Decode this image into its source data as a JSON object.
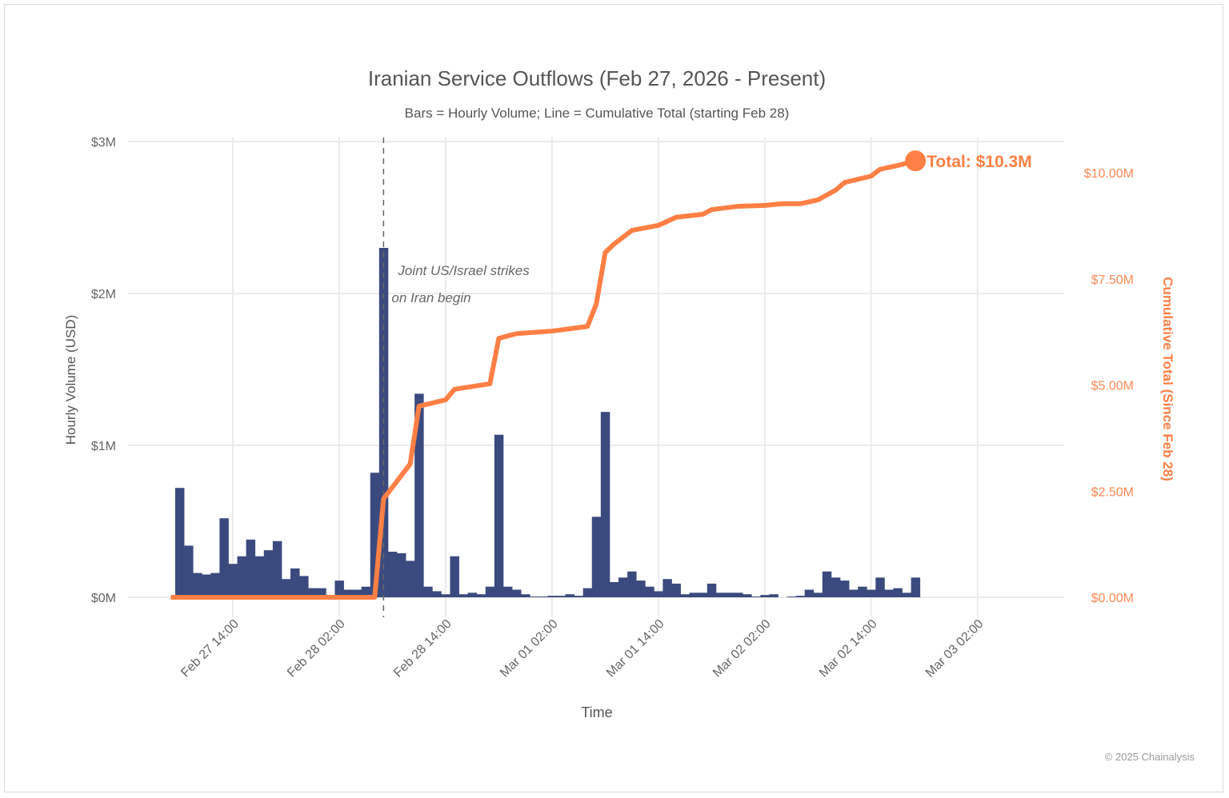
{
  "chart_data": {
    "type": "bar+line",
    "title": "Iranian Service Outflows (Feb 27, 2026 - Present)",
    "subtitle": "Bars = Hourly Volume; Line = Cumulative Total (starting Feb 28)",
    "xlabel": "Time",
    "ylabel": "Hourly Volume (USD)",
    "ylabel_right": "Cumulative Total (Since Feb 28)",
    "ylim": [
      0,
      3
    ],
    "ylim_right": [
      0,
      10.73
    ],
    "grid": true,
    "x_ticks": [
      {
        "t": "2026-02-27 14:00",
        "label": "Feb 27 14:00"
      },
      {
        "t": "2026-02-28 02:00",
        "label": "Feb 28 02:00"
      },
      {
        "t": "2026-02-28 14:00",
        "label": "Feb 28 14:00"
      },
      {
        "t": "2026-03-01 02:00",
        "label": "Mar 01 02:00"
      },
      {
        "t": "2026-03-01 14:00",
        "label": "Mar 01 14:00"
      },
      {
        "t": "2026-03-02 02:00",
        "label": "Mar 02 02:00"
      },
      {
        "t": "2026-03-02 14:00",
        "label": "Mar 02 14:00"
      },
      {
        "t": "2026-03-03 02:00",
        "label": "Mar 03 02:00"
      }
    ],
    "y_ticks": [
      {
        "v": 0,
        "label": "$0M"
      },
      {
        "v": 1,
        "label": "$1M"
      },
      {
        "v": 2,
        "label": "$2M"
      },
      {
        "v": 3,
        "label": "$3M"
      }
    ],
    "y_ticks_right": [
      {
        "v": 0,
        "label": "$0.00M"
      },
      {
        "v": 2.5,
        "label": "$2.50M"
      },
      {
        "v": 5,
        "label": "$5.00M"
      },
      {
        "v": 7.5,
        "label": "$7.50M"
      },
      {
        "v": 10,
        "label": "$10.00M"
      }
    ],
    "bars": {
      "unit": "USD millions",
      "color": "#3b4a7e",
      "x": [
        "2026-02-27 08:00",
        "2026-02-27 09:00",
        "2026-02-27 10:00",
        "2026-02-27 11:00",
        "2026-02-27 12:00",
        "2026-02-27 13:00",
        "2026-02-27 14:00",
        "2026-02-27 15:00",
        "2026-02-27 16:00",
        "2026-02-27 17:00",
        "2026-02-27 18:00",
        "2026-02-27 19:00",
        "2026-02-27 20:00",
        "2026-02-27 21:00",
        "2026-02-27 22:00",
        "2026-02-27 23:00",
        "2026-02-28 00:00",
        "2026-02-28 01:00",
        "2026-02-28 02:00",
        "2026-02-28 03:00",
        "2026-02-28 04:00",
        "2026-02-28 05:00",
        "2026-02-28 06:00",
        "2026-02-28 07:00",
        "2026-02-28 08:00",
        "2026-02-28 09:00",
        "2026-02-28 10:00",
        "2026-02-28 11:00",
        "2026-02-28 12:00",
        "2026-02-28 13:00",
        "2026-02-28 14:00",
        "2026-02-28 15:00",
        "2026-02-28 16:00",
        "2026-02-28 17:00",
        "2026-02-28 18:00",
        "2026-02-28 19:00",
        "2026-02-28 20:00",
        "2026-02-28 21:00",
        "2026-02-28 22:00",
        "2026-02-28 23:00",
        "2026-03-01 00:00",
        "2026-03-01 01:00",
        "2026-03-01 02:00",
        "2026-03-01 03:00",
        "2026-03-01 04:00",
        "2026-03-01 05:00",
        "2026-03-01 06:00",
        "2026-03-01 07:00",
        "2026-03-01 08:00",
        "2026-03-01 09:00",
        "2026-03-01 10:00",
        "2026-03-01 11:00",
        "2026-03-01 12:00",
        "2026-03-01 13:00",
        "2026-03-01 14:00",
        "2026-03-01 15:00",
        "2026-03-01 16:00",
        "2026-03-01 17:00",
        "2026-03-01 18:00",
        "2026-03-01 19:00",
        "2026-03-01 20:00",
        "2026-03-01 21:00",
        "2026-03-01 22:00",
        "2026-03-01 23:00",
        "2026-03-02 00:00",
        "2026-03-02 01:00",
        "2026-03-02 02:00",
        "2026-03-02 03:00",
        "2026-03-02 04:00",
        "2026-03-02 05:00",
        "2026-03-02 06:00",
        "2026-03-02 07:00",
        "2026-03-02 08:00",
        "2026-03-02 09:00",
        "2026-03-02 10:00",
        "2026-03-02 11:00",
        "2026-03-02 12:00",
        "2026-03-02 13:00",
        "2026-03-02 14:00",
        "2026-03-02 15:00",
        "2026-03-02 16:00",
        "2026-03-02 17:00",
        "2026-03-02 18:00",
        "2026-03-02 19:00"
      ],
      "values": [
        0.72,
        0.34,
        0.16,
        0.15,
        0.16,
        0.52,
        0.22,
        0.27,
        0.38,
        0.27,
        0.31,
        0.37,
        0.12,
        0.19,
        0.14,
        0.06,
        0.06,
        0.01,
        0.11,
        0.05,
        0.05,
        0.07,
        0.82,
        2.3,
        0.3,
        0.29,
        0.24,
        1.34,
        0.07,
        0.04,
        0.02,
        0.27,
        0.02,
        0.03,
        0.02,
        0.07,
        1.07,
        0.07,
        0.05,
        0.02,
        0.005,
        0.005,
        0.01,
        0.01,
        0.02,
        0.01,
        0.06,
        0.53,
        1.22,
        0.1,
        0.13,
        0.17,
        0.11,
        0.07,
        0.04,
        0.12,
        0.09,
        0.02,
        0.03,
        0.03,
        0.09,
        0.03,
        0.03,
        0.03,
        0.02,
        0.005,
        0.015,
        0.02,
        0,
        0.005,
        0.01,
        0.05,
        0.03,
        0.17,
        0.13,
        0.11,
        0.05,
        0.07,
        0.05,
        0.13,
        0.05,
        0.06,
        0.03,
        0.13
      ]
    },
    "line": {
      "unit": "USD millions",
      "color": "#ff7f45",
      "points": [
        [
          "2026-02-27 07:00",
          0
        ],
        [
          "2026-02-28 06:00",
          0
        ],
        [
          "2026-02-28 07:00",
          2.32
        ],
        [
          "2026-02-28 10:00",
          3.14
        ],
        [
          "2026-02-28 11:00",
          4.5
        ],
        [
          "2026-02-28 14:00",
          4.65
        ],
        [
          "2026-02-28 15:00",
          4.9
        ],
        [
          "2026-02-28 19:00",
          5.03
        ],
        [
          "2026-02-28 20:00",
          6.1
        ],
        [
          "2026-02-28 22:00",
          6.21
        ],
        [
          "2026-03-01 02:00",
          6.27
        ],
        [
          "2026-03-01 06:00",
          6.38
        ],
        [
          "2026-03-01 07:00",
          6.91
        ],
        [
          "2026-03-01 08:00",
          8.12
        ],
        [
          "2026-03-01 09:00",
          8.32
        ],
        [
          "2026-03-01 11:00",
          8.64
        ],
        [
          "2026-03-01 14:00",
          8.76
        ],
        [
          "2026-03-01 16:00",
          8.95
        ],
        [
          "2026-03-01 19:00",
          9.02
        ],
        [
          "2026-03-01 20:00",
          9.13
        ],
        [
          "2026-03-01 23:00",
          9.21
        ],
        [
          "2026-03-02 02:00",
          9.23
        ],
        [
          "2026-03-02 04:00",
          9.27
        ],
        [
          "2026-03-02 06:00",
          9.27
        ],
        [
          "2026-03-02 08:00",
          9.36
        ],
        [
          "2026-03-02 10:00",
          9.59
        ],
        [
          "2026-03-02 11:00",
          9.77
        ],
        [
          "2026-03-02 14:00",
          9.92
        ],
        [
          "2026-03-02 15:00",
          10.08
        ],
        [
          "2026-03-02 17:00",
          10.17
        ],
        [
          "2026-03-02 19:00",
          10.28
        ]
      ],
      "end_label": "Total: $10.3M"
    },
    "annotation": {
      "t": "2026-02-28 07:00",
      "line1": "Joint US/Israel strikes",
      "line2": "on Iran begin"
    }
  },
  "footer": {
    "copyright": "© 2025 Chainalysis"
  }
}
